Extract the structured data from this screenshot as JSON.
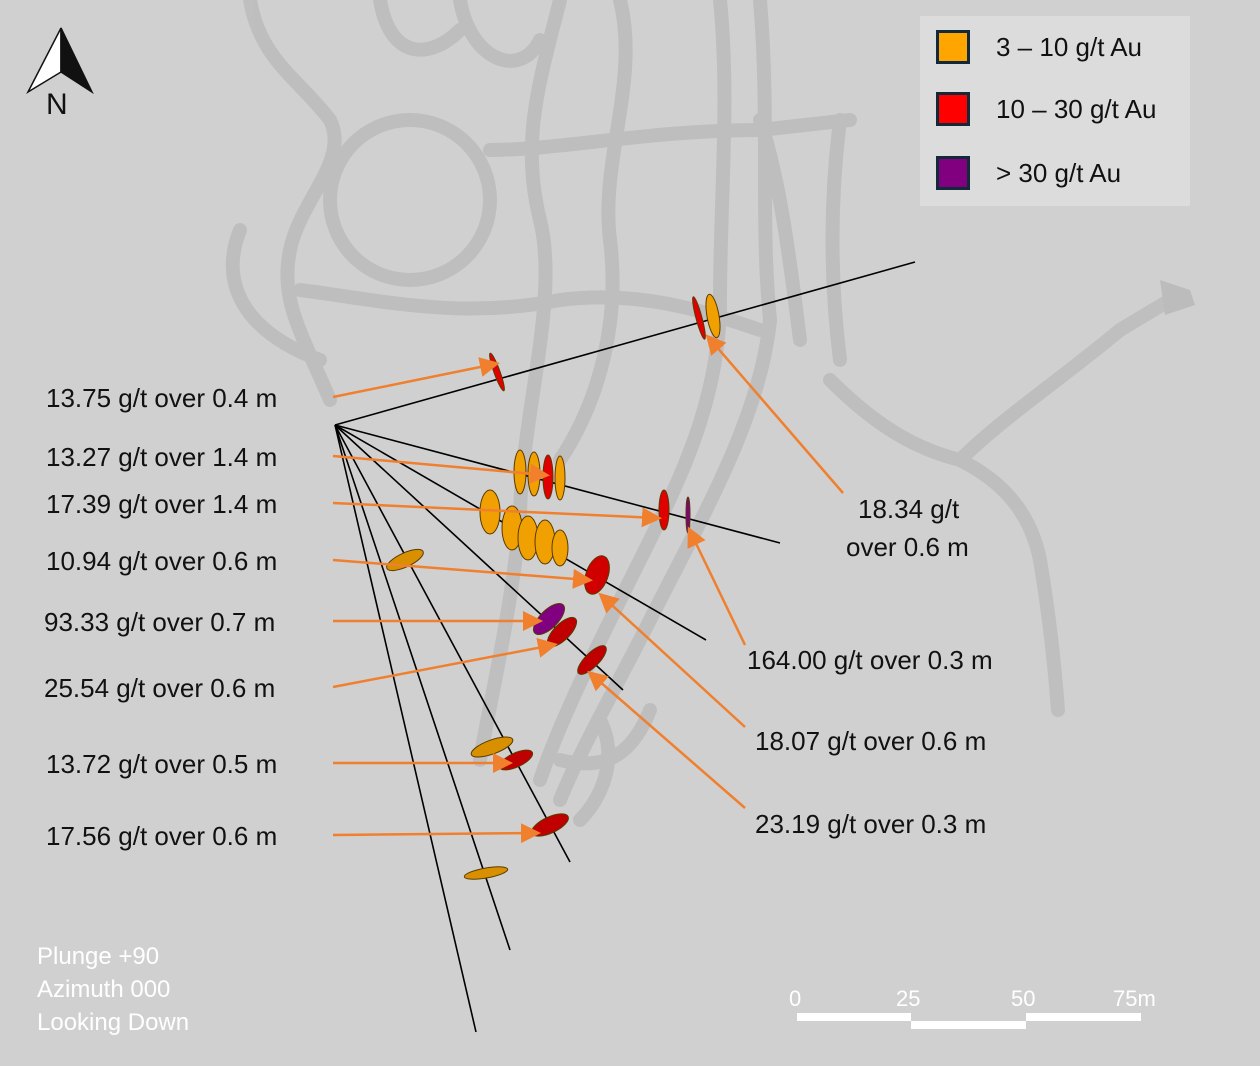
{
  "north_label": "N",
  "legend": [
    {
      "label": "3 – 10 g/t Au",
      "color": "#FFA500"
    },
    {
      "label": "10 – 30 g/t Au",
      "color": "#FF0000"
    },
    {
      "label": "> 30 g/t Au",
      "color": "#800080"
    }
  ],
  "left_labels": [
    "13.75 g/t over 0.4 m",
    "13.27 g/t over 1.4 m",
    "17.39 g/t over 1.4 m",
    "10.94 g/t over 0.6 m",
    "93.33 g/t over 0.7 m",
    "25.54 g/t over 0.6 m",
    "13.72 g/t over 0.5 m",
    "17.56 g/t over 0.6 m"
  ],
  "right_labels": {
    "r1_line1": "18.34 g/t",
    "r1_line2": "over 0.6 m",
    "r2": "164.00 g/t over 0.3 m",
    "r3": "18.07 g/t over 0.6 m",
    "r4": "23.19 g/t over 0.3 m"
  },
  "view": {
    "plunge": "Plunge +90",
    "azimuth": "Azimuth 000",
    "looking": "Looking Down"
  },
  "scale_bar": {
    "ticks": [
      "0",
      "25",
      "50",
      "75m"
    ]
  },
  "colors": {
    "arrow": "#F07F2E",
    "tunnel": "#bdbdbd",
    "drillhole": "#000000"
  }
}
